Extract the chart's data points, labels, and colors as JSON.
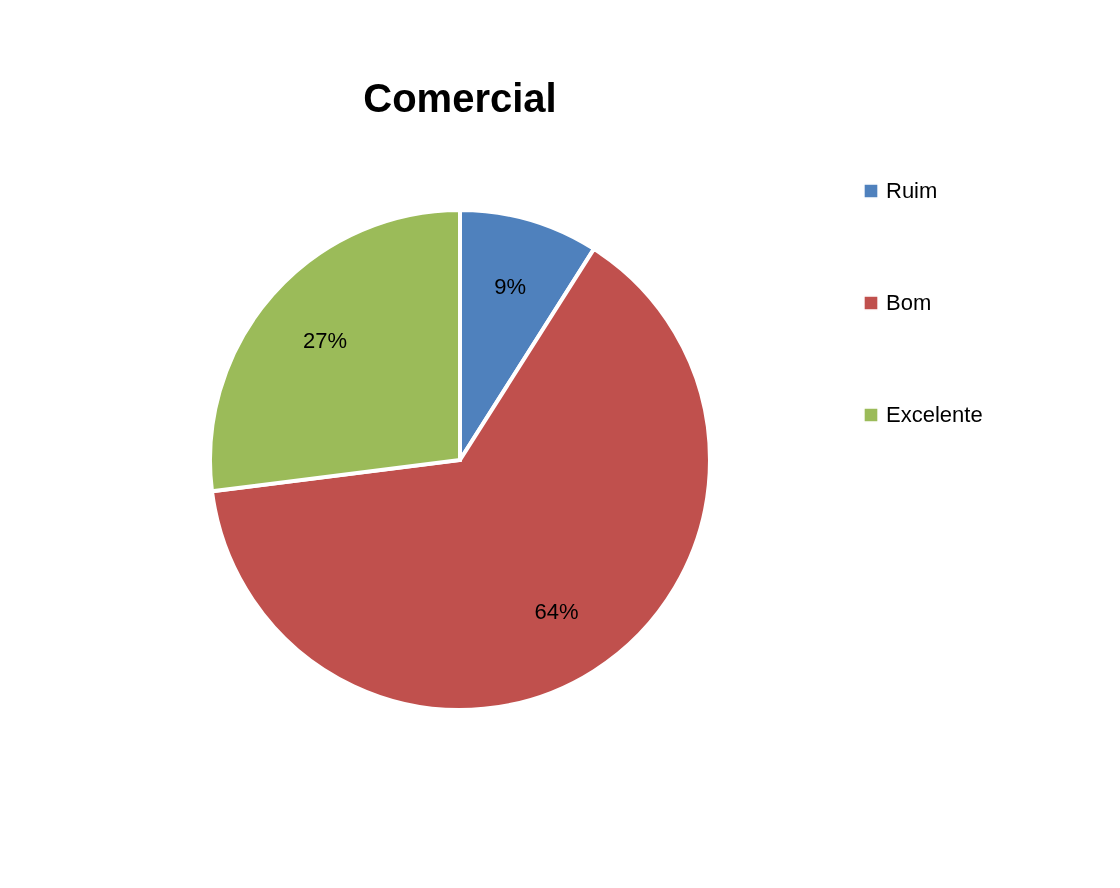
{
  "chart_data": {
    "type": "pie",
    "title": "Comercial",
    "categories": [
      "Ruim",
      "Bom",
      "Excelente"
    ],
    "values": [
      9,
      64,
      27
    ],
    "value_labels": [
      "9%",
      "64%",
      "27%"
    ],
    "colors": [
      "#4f81bd",
      "#c0504d",
      "#9bbb59"
    ],
    "legend": "right"
  }
}
